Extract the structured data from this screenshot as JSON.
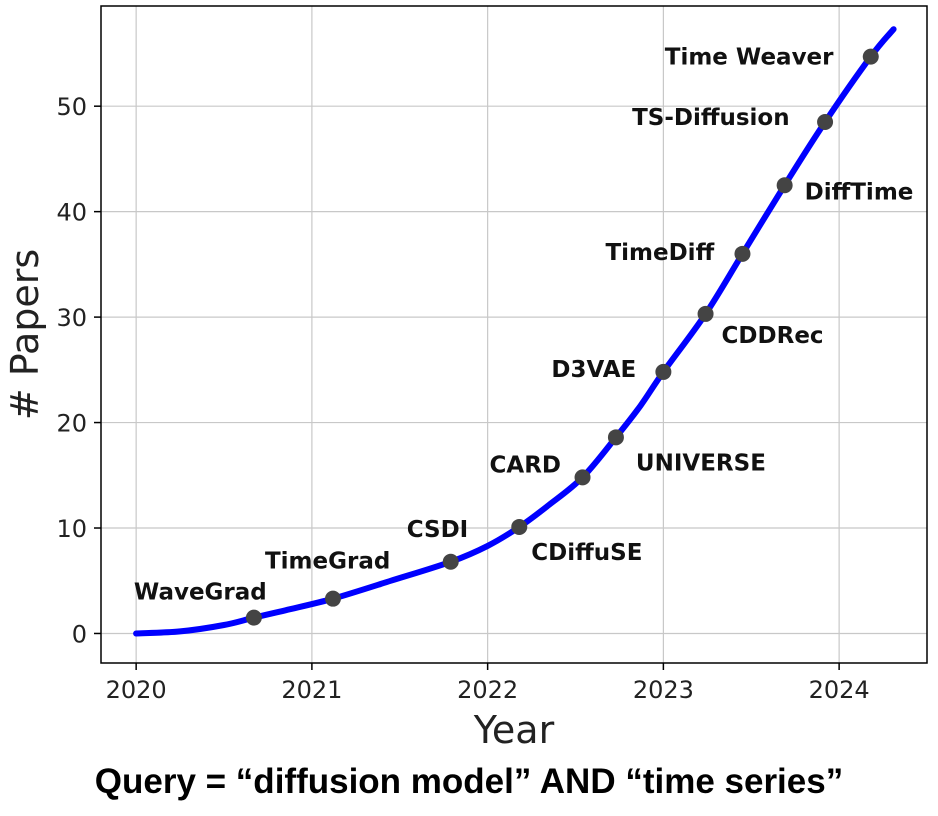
{
  "chart_data": {
    "type": "line",
    "xlabel": "Year",
    "ylabel": "# Papers",
    "xlim": [
      2019.8,
      2024.5
    ],
    "ylim": [
      -2.8,
      59.5
    ],
    "x_ticks": [
      2020,
      2021,
      2022,
      2023,
      2024
    ],
    "y_ticks": [
      0,
      10,
      20,
      30,
      40,
      50
    ],
    "grid": true,
    "line_color": "#0000ff",
    "marker_color": "#444444",
    "curve": {
      "x": [
        2020.0,
        2020.25,
        2020.5,
        2020.67,
        2020.85,
        2021.12,
        2021.45,
        2021.79,
        2022.0,
        2022.18,
        2022.35,
        2022.54,
        2022.73,
        2022.87,
        2023.0,
        2023.24,
        2023.45,
        2023.69,
        2023.92,
        2024.18,
        2024.31
      ],
      "y": [
        0.0,
        0.2,
        0.8,
        1.5,
        2.2,
        3.3,
        5.0,
        6.8,
        8.3,
        10.1,
        12.2,
        14.8,
        18.6,
        21.6,
        24.8,
        30.3,
        36.0,
        42.5,
        48.5,
        54.7,
        57.3
      ]
    },
    "papers": [
      {
        "name": "WaveGrad",
        "x": 2020.67,
        "y": 1.5
      },
      {
        "name": "TimeGrad",
        "x": 2021.12,
        "y": 3.3
      },
      {
        "name": "CSDI",
        "x": 2021.79,
        "y": 6.8
      },
      {
        "name": "CDiffuSE",
        "x": 2022.18,
        "y": 10.1
      },
      {
        "name": "CARD",
        "x": 2022.54,
        "y": 14.8
      },
      {
        "name": "UNIVERSE",
        "x": 2022.73,
        "y": 18.6
      },
      {
        "name": "D3VAE",
        "x": 2023.0,
        "y": 24.8
      },
      {
        "name": "CDDRec",
        "x": 2023.24,
        "y": 30.3
      },
      {
        "name": "TimeDiff",
        "x": 2023.45,
        "y": 36.0
      },
      {
        "name": "DiffTime",
        "x": 2023.69,
        "y": 42.5
      },
      {
        "name": "TS-Diffusion",
        "x": 2023.92,
        "y": 48.5
      },
      {
        "name": "Time Weaver",
        "x": 2024.18,
        "y": 54.7
      }
    ]
  },
  "caption": "Query = “diffusion model” AND “time series”"
}
